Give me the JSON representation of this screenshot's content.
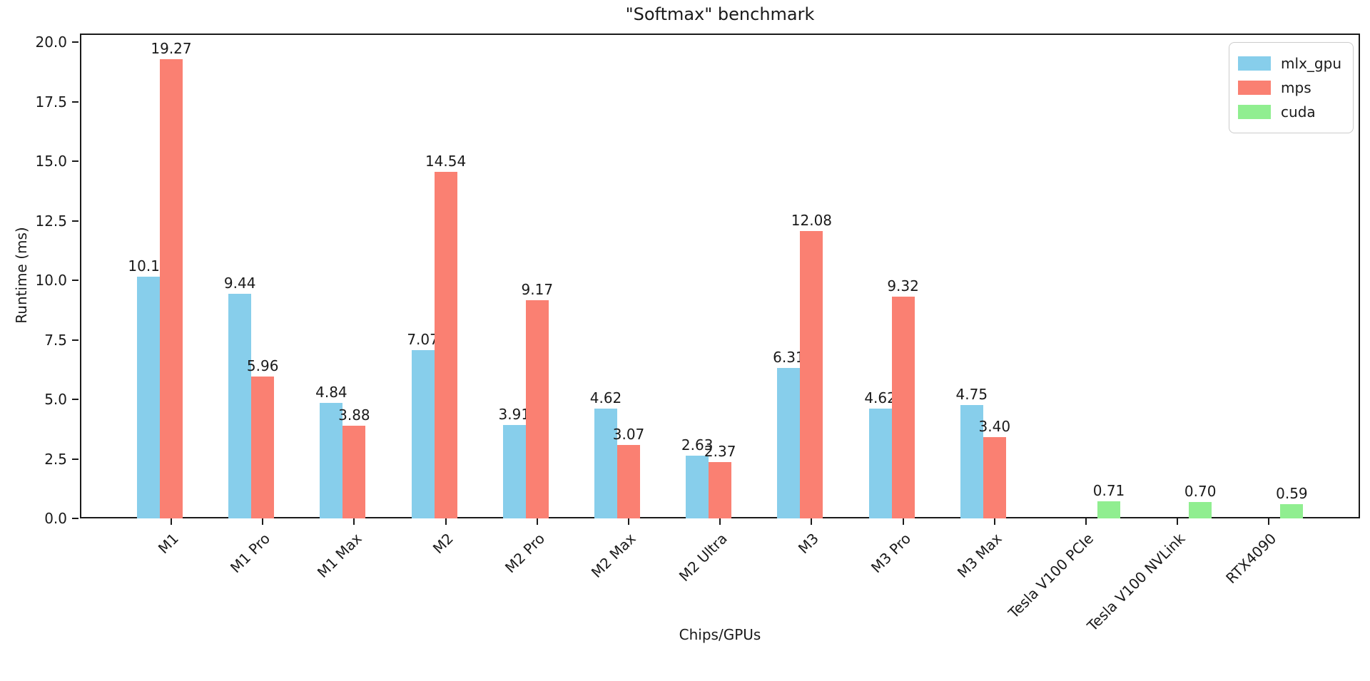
{
  "title": "\"Softmax\" benchmark",
  "chart_data": {
    "type": "bar",
    "title": "\"Softmax\" benchmark",
    "xlabel": "Chips/GPUs",
    "ylabel": "Runtime (ms)",
    "ylim": [
      0,
      20.36
    ],
    "yticks": [
      0.0,
      2.5,
      5.0,
      7.5,
      10.0,
      12.5,
      15.0,
      17.5,
      20.0
    ],
    "grid": false,
    "legend_position": "upper right",
    "value_label_decimals": 2,
    "categories": [
      "M1",
      "M1 Pro",
      "M1 Max",
      "M2",
      "M2 Pro",
      "M2 Max",
      "M2 Ultra",
      "M3",
      "M3 Pro",
      "M3 Max",
      "Tesla V100 PCIe",
      "Tesla V100 NVLink",
      "RTX4090"
    ],
    "series": [
      {
        "name": "mlx_gpu",
        "color": "#87CEEB",
        "values": [
          10.15,
          9.44,
          4.84,
          7.07,
          3.91,
          4.62,
          2.63,
          6.31,
          4.62,
          4.75,
          null,
          null,
          null
        ]
      },
      {
        "name": "mps",
        "color": "#FA8072",
        "values": [
          19.27,
          5.96,
          3.88,
          14.54,
          9.17,
          3.07,
          2.37,
          12.08,
          9.32,
          3.4,
          null,
          null,
          null
        ]
      },
      {
        "name": "cuda",
        "color": "#90EE90",
        "values": [
          null,
          null,
          null,
          null,
          null,
          null,
          null,
          null,
          null,
          null,
          0.71,
          0.7,
          0.59
        ]
      }
    ]
  }
}
